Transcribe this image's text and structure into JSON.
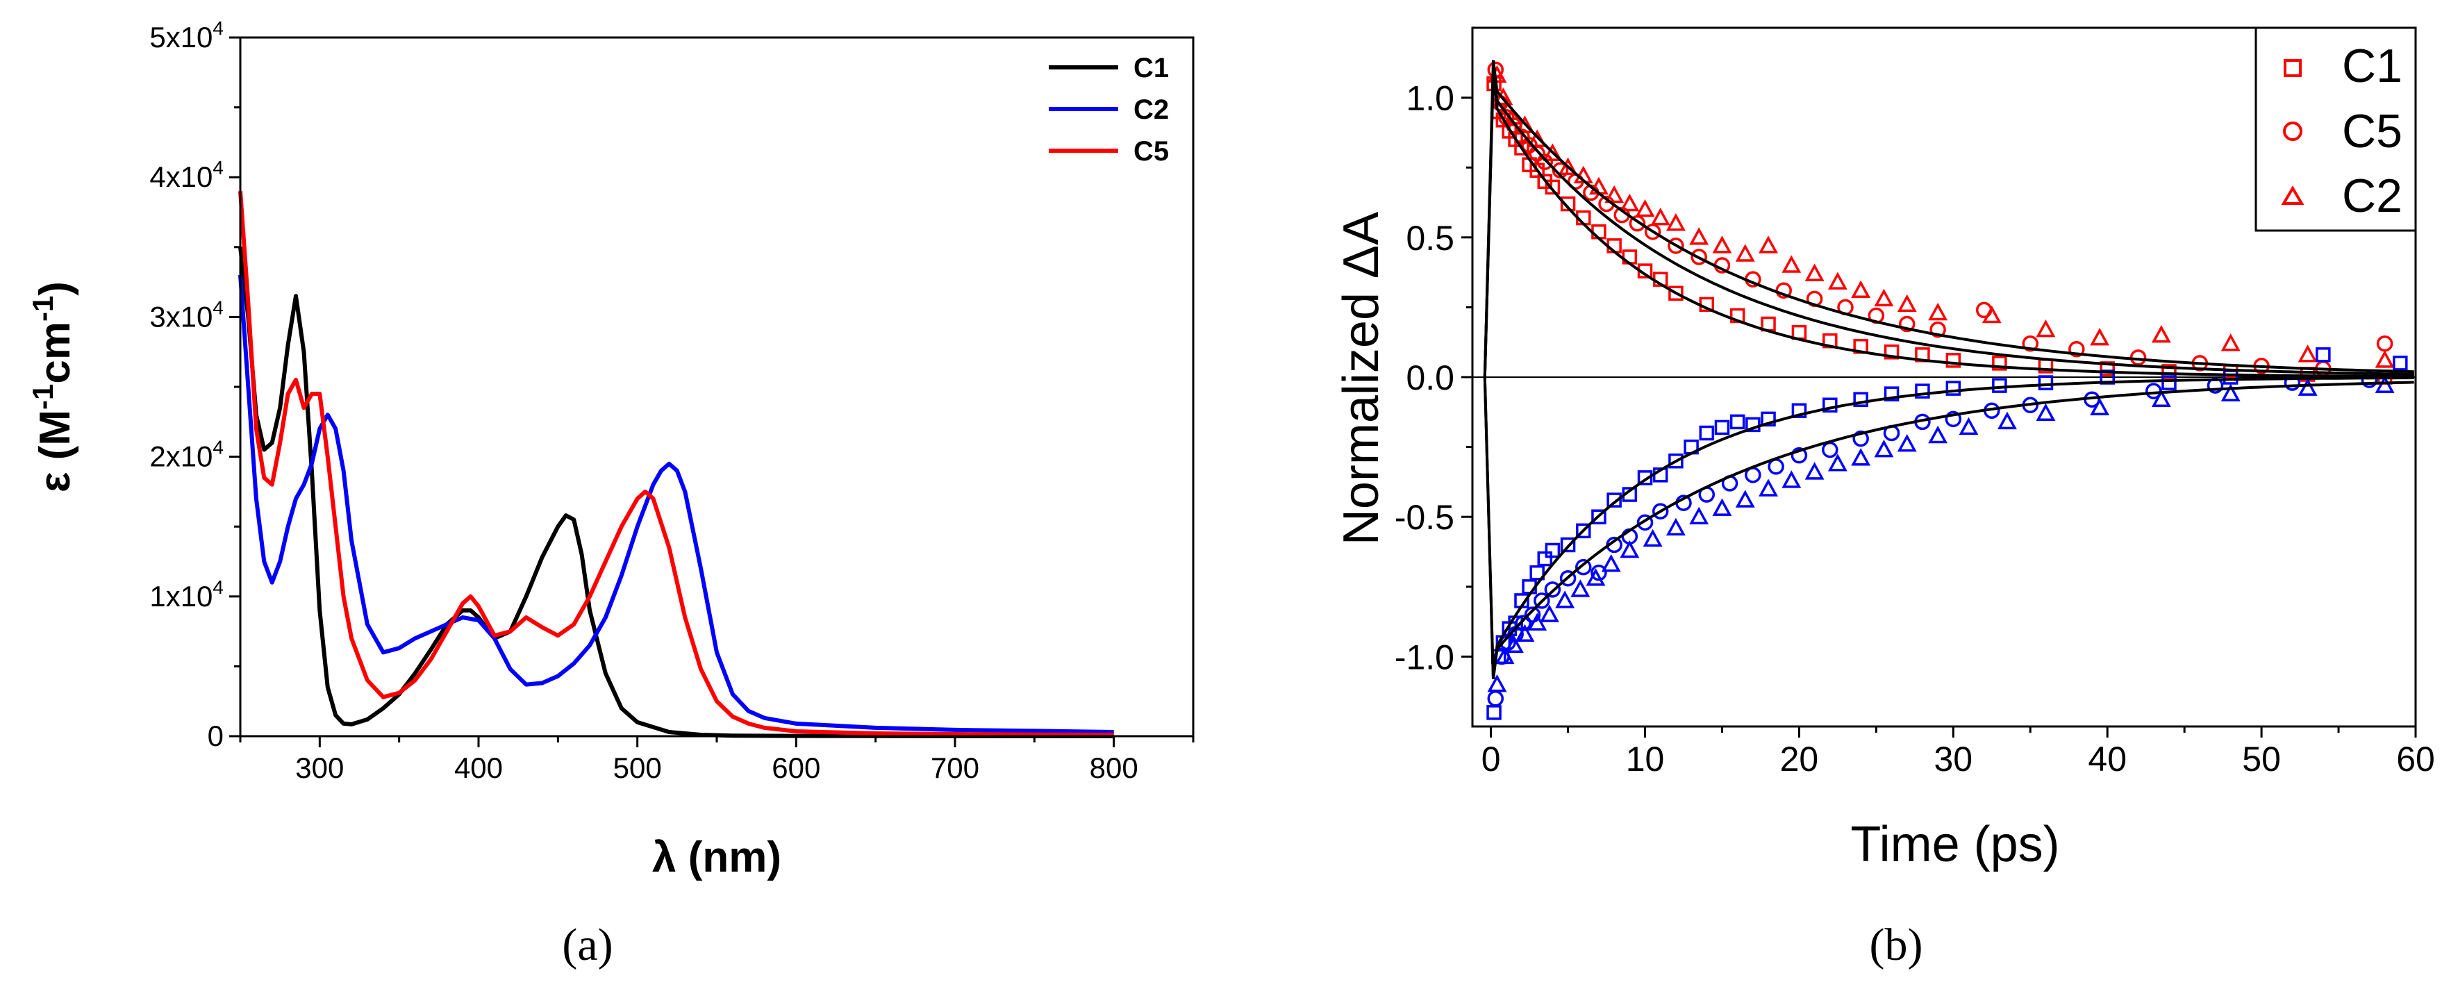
{
  "chart_data": [
    {
      "panel_label": "(a)",
      "type": "line",
      "title": "",
      "xlabel": "λ (nm)",
      "ylabel": {
        "base": "ε (M",
        "sup1": "-1",
        "mid": "cm",
        "sup2": "-1",
        "end": ")"
      },
      "xlim": [
        250,
        850
      ],
      "ylim": [
        0,
        50000
      ],
      "xticks": [
        300,
        400,
        500,
        600,
        700,
        800
      ],
      "yticks": [
        {
          "value": 0,
          "mantissa": "0",
          "exp": ""
        },
        {
          "value": 10000,
          "mantissa": "1x10",
          "exp": "4"
        },
        {
          "value": 20000,
          "mantissa": "2x10",
          "exp": "4"
        },
        {
          "value": 30000,
          "mantissa": "3x10",
          "exp": "4"
        },
        {
          "value": 40000,
          "mantissa": "4x10",
          "exp": "4"
        },
        {
          "value": 50000,
          "mantissa": "5x10",
          "exp": "4"
        }
      ],
      "legend_position": "top-right",
      "series": [
        {
          "name": "C1",
          "color": "#000000",
          "x": [
            250,
            255,
            260,
            265,
            270,
            275,
            280,
            285,
            290,
            295,
            300,
            305,
            310,
            315,
            320,
            330,
            340,
            350,
            360,
            370,
            380,
            390,
            395,
            400,
            410,
            420,
            430,
            440,
            450,
            455,
            460,
            465,
            470,
            480,
            490,
            500,
            520,
            540,
            560,
            600,
            650,
            700,
            750,
            800
          ],
          "y": [
            35000,
            30000,
            23000,
            20500,
            21000,
            23500,
            28000,
            31500,
            27500,
            19000,
            9000,
            3500,
            1500,
            900,
            850,
            1200,
            2000,
            3000,
            4500,
            6200,
            8000,
            9000,
            9000,
            8500,
            7000,
            7500,
            10000,
            12800,
            15000,
            15800,
            15500,
            13000,
            9000,
            4500,
            2000,
            1000,
            300,
            100,
            40,
            20,
            10,
            5,
            5,
            5
          ]
        },
        {
          "name": "C2",
          "color": "#0000ff",
          "x": [
            250,
            255,
            260,
            265,
            270,
            275,
            280,
            285,
            290,
            295,
            300,
            305,
            310,
            315,
            320,
            330,
            340,
            350,
            360,
            370,
            380,
            390,
            400,
            410,
            420,
            430,
            440,
            450,
            460,
            470,
            480,
            490,
            500,
            510,
            515,
            520,
            525,
            530,
            540,
            550,
            560,
            570,
            580,
            600,
            650,
            700,
            750,
            800
          ],
          "y": [
            33000,
            25000,
            17000,
            12500,
            11000,
            12500,
            15000,
            17000,
            18000,
            19500,
            22000,
            23000,
            22000,
            19000,
            14000,
            8000,
            6000,
            6300,
            7000,
            7500,
            8000,
            8500,
            8300,
            7000,
            4800,
            3700,
            3800,
            4300,
            5200,
            6500,
            8500,
            11500,
            15000,
            18000,
            19000,
            19500,
            19000,
            17500,
            12000,
            6000,
            3000,
            1800,
            1300,
            900,
            600,
            450,
            380,
            300
          ]
        },
        {
          "name": "C5",
          "color": "#ff0000",
          "x": [
            250,
            255,
            260,
            265,
            270,
            275,
            280,
            285,
            290,
            295,
            300,
            305,
            310,
            315,
            320,
            330,
            340,
            350,
            360,
            370,
            380,
            390,
            395,
            400,
            410,
            420,
            430,
            440,
            450,
            460,
            470,
            480,
            490,
            500,
            505,
            510,
            520,
            530,
            540,
            550,
            560,
            570,
            580,
            600,
            650,
            700,
            750,
            800
          ],
          "y": [
            39000,
            31000,
            22000,
            18500,
            18000,
            21000,
            24500,
            25500,
            23500,
            24500,
            24500,
            20000,
            15000,
            10000,
            7000,
            4000,
            2800,
            3100,
            4000,
            5500,
            7500,
            9500,
            10000,
            9300,
            7200,
            7500,
            8500,
            7800,
            7200,
            8000,
            10000,
            12500,
            15000,
            17000,
            17500,
            17000,
            13500,
            8500,
            4800,
            2500,
            1400,
            900,
            600,
            350,
            200,
            150,
            120,
            100
          ]
        }
      ]
    },
    {
      "panel_label": "(b)",
      "type": "scatter",
      "title": "",
      "xlabel": "Time (ps)",
      "ylabel": "Normalized ΔA",
      "xlim": [
        -1.2,
        60
      ],
      "ylim": [
        -1.25,
        1.25
      ],
      "xticks": [
        0,
        10,
        20,
        30,
        40,
        50,
        60
      ],
      "yticks": [
        -1.0,
        -0.5,
        0.0,
        0.5,
        1.0
      ],
      "ytick_labels": [
        "-1.0",
        "-0.5",
        "0.0",
        "0.5",
        "1.0"
      ],
      "zero_line": true,
      "legend_position": "top-right",
      "legend": [
        {
          "name": "C1",
          "marker": "square",
          "color": "#ff0000"
        },
        {
          "name": "C5",
          "marker": "circle",
          "color": "#ff0000"
        },
        {
          "name": "C2",
          "marker": "triangle",
          "color": "#ff0000"
        }
      ],
      "series": [
        {
          "name": "C1 positive",
          "marker": "square",
          "color": "#ff0000",
          "amplitude": 1.0,
          "tau": 10,
          "x": [
            0.2,
            0.5,
            0.8,
            1.2,
            1.6,
            2.0,
            2.5,
            3.0,
            3.5,
            4.0,
            5.0,
            6.0,
            7.0,
            8.0,
            9.0,
            10.0,
            11.0,
            12.0,
            14.0,
            16.0,
            18.0,
            20.0,
            22.0,
            24.0,
            26.0,
            28.0,
            30.0,
            33.0,
            36.0,
            40.0,
            44.0,
            48.0,
            53.0,
            58.0
          ],
          "y": [
            1.05,
            0.95,
            0.92,
            0.88,
            0.85,
            0.82,
            0.76,
            0.74,
            0.7,
            0.68,
            0.62,
            0.57,
            0.52,
            0.47,
            0.43,
            0.38,
            0.35,
            0.3,
            0.26,
            0.22,
            0.19,
            0.16,
            0.13,
            0.11,
            0.09,
            0.08,
            0.06,
            0.05,
            0.04,
            0.03,
            0.02,
            0.02,
            0.01,
            0.0
          ]
        },
        {
          "name": "C5 positive",
          "marker": "circle",
          "color": "#ff0000",
          "amplitude": 1.02,
          "tau": 13,
          "x": [
            0.3,
            0.6,
            1.0,
            1.5,
            2.0,
            2.5,
            3.0,
            3.5,
            4.5,
            5.5,
            6.5,
            7.5,
            8.5,
            9.5,
            10.5,
            12.0,
            13.5,
            15.0,
            17.0,
            19.0,
            21.0,
            23.0,
            25.0,
            27.0,
            29.0,
            32.0,
            35.0,
            38.0,
            42.0,
            46.0,
            50.0,
            54.0,
            58.0
          ],
          "y": [
            1.1,
            0.98,
            0.93,
            0.9,
            0.86,
            0.83,
            0.8,
            0.77,
            0.74,
            0.7,
            0.66,
            0.62,
            0.58,
            0.55,
            0.52,
            0.47,
            0.43,
            0.4,
            0.35,
            0.31,
            0.28,
            0.25,
            0.22,
            0.19,
            0.17,
            0.24,
            0.12,
            0.1,
            0.07,
            0.05,
            0.04,
            0.03,
            0.12
          ]
        },
        {
          "name": "C2 positive",
          "marker": "triangle",
          "color": "#ff0000",
          "amplitude": 1.05,
          "tau": 15,
          "x": [
            0.4,
            0.8,
            1.4,
            2.2,
            3.0,
            4.0,
            5.0,
            6.0,
            7.0,
            8.0,
            9.0,
            10.0,
            11.0,
            12.0,
            13.5,
            15.0,
            16.5,
            18.0,
            19.5,
            21.0,
            22.5,
            24.0,
            25.5,
            27.0,
            29.0,
            32.5,
            36.0,
            39.5,
            43.5,
            48.0,
            53.0,
            58.0
          ],
          "y": [
            1.08,
            1.0,
            0.93,
            0.9,
            0.85,
            0.8,
            0.75,
            0.72,
            0.68,
            0.65,
            0.62,
            0.6,
            0.57,
            0.55,
            0.5,
            0.47,
            0.44,
            0.47,
            0.4,
            0.37,
            0.34,
            0.31,
            0.28,
            0.26,
            0.23,
            0.22,
            0.17,
            0.14,
            0.15,
            0.12,
            0.08,
            0.06
          ]
        },
        {
          "name": "C1 negative",
          "marker": "square",
          "color": "#0000ff",
          "amplitude": -1.0,
          "tau": 10,
          "x": [
            0.2,
            0.5,
            0.8,
            1.2,
            1.6,
            2.0,
            2.5,
            3.0,
            3.5,
            4.0,
            5.0,
            6.0,
            7.0,
            8.0,
            9.0,
            10.0,
            11.0,
            12.0,
            13.0,
            14.0,
            15.0,
            16.0,
            17.0,
            18.0,
            20.0,
            22.0,
            24.0,
            26.0,
            28.0,
            30.0,
            33.0,
            36.0,
            40.0,
            44.0,
            48.0,
            54.0,
            59.0
          ],
          "y": [
            -1.2,
            -1.0,
            -0.95,
            -0.9,
            -0.88,
            -0.8,
            -0.75,
            -0.7,
            -0.65,
            -0.62,
            -0.6,
            -0.55,
            -0.5,
            -0.44,
            -0.42,
            -0.36,
            -0.35,
            -0.3,
            -0.25,
            -0.2,
            -0.18,
            -0.16,
            -0.17,
            -0.15,
            -0.12,
            -0.1,
            -0.08,
            -0.06,
            -0.05,
            -0.04,
            -0.03,
            -0.02,
            0.0,
            -0.02,
            0.0,
            0.08,
            0.05
          ]
        },
        {
          "name": "C5 negative",
          "marker": "circle",
          "color": "#0000ff",
          "amplitude": -1.0,
          "tau": 13,
          "x": [
            0.3,
            0.7,
            1.1,
            1.6,
            2.1,
            2.7,
            3.3,
            4.0,
            5.0,
            6.0,
            7.0,
            8.0,
            9.0,
            10.0,
            11.0,
            12.5,
            14.0,
            15.5,
            17.0,
            18.5,
            20.0,
            22.0,
            24.0,
            26.0,
            28.0,
            30.0,
            32.5,
            35.0,
            39.0,
            43.0,
            47.0,
            52.0,
            57.0
          ],
          "y": [
            -1.15,
            -1.0,
            -0.95,
            -0.92,
            -0.88,
            -0.85,
            -0.8,
            -0.76,
            -0.72,
            -0.68,
            -0.7,
            -0.6,
            -0.57,
            -0.52,
            -0.48,
            -0.45,
            -0.42,
            -0.38,
            -0.35,
            -0.32,
            -0.28,
            -0.26,
            -0.22,
            -0.2,
            -0.16,
            -0.15,
            -0.12,
            -0.1,
            -0.08,
            -0.05,
            -0.03,
            -0.02,
            -0.01
          ]
        },
        {
          "name": "C2 negative",
          "marker": "triangle",
          "color": "#0000ff",
          "amplitude": -1.0,
          "tau": 15,
          "x": [
            0.4,
            0.9,
            1.5,
            2.2,
            3.0,
            3.8,
            4.8,
            5.8,
            6.8,
            7.8,
            9.0,
            10.5,
            12.0,
            13.5,
            15.0,
            16.5,
            18.0,
            19.5,
            21.0,
            22.5,
            24.0,
            25.5,
            27.0,
            29.0,
            31.0,
            33.5,
            36.0,
            39.5,
            43.5,
            48.0,
            53.0,
            58.0
          ],
          "y": [
            -1.1,
            -1.0,
            -0.96,
            -0.92,
            -0.88,
            -0.85,
            -0.8,
            -0.76,
            -0.72,
            -0.67,
            -0.62,
            -0.58,
            -0.54,
            -0.5,
            -0.47,
            -0.44,
            -0.4,
            -0.37,
            -0.34,
            -0.31,
            -0.29,
            -0.26,
            -0.24,
            -0.21,
            -0.18,
            -0.16,
            -0.13,
            -0.11,
            -0.08,
            -0.06,
            -0.04,
            -0.03
          ]
        }
      ],
      "fits": [
        {
          "name": "fit C1 positive",
          "amplitude": 1.0,
          "tau": 10
        },
        {
          "name": "fit C5 positive",
          "amplitude": 1.02,
          "tau": 13
        },
        {
          "name": "fit C2 positive",
          "amplitude": 1.05,
          "tau": 15
        },
        {
          "name": "fit C1 negative",
          "amplitude": -1.0,
          "tau": 10
        },
        {
          "name": "fit C2 negative",
          "amplitude": -1.0,
          "tau": 15
        }
      ]
    }
  ]
}
